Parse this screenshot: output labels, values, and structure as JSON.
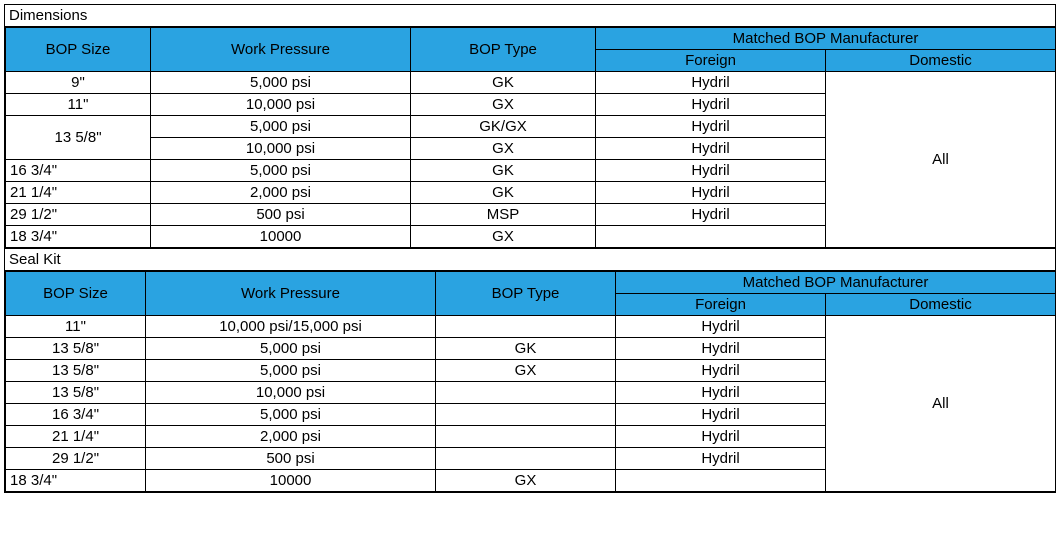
{
  "colors": {
    "header_bg": "#2aa3e1",
    "border": "#000000",
    "background": "#ffffff",
    "text": "#000000"
  },
  "typography": {
    "font_family": "Arial, sans-serif",
    "font_size_pt": 11
  },
  "sections": {
    "dimensions": {
      "title": "Dimensions",
      "headers": {
        "bop_size": "BOP Size",
        "work_pressure": "Work Pressure",
        "bop_type": "BOP Type",
        "matched_mfr": "Matched BOP Manufacturer",
        "foreign": "Foreign",
        "domestic": "Domestic"
      },
      "domestic_all": "All",
      "rows": [
        {
          "size": "9\"",
          "wp": "5,000 psi",
          "type": "GK",
          "foreign": "Hydril"
        },
        {
          "size": "11\"",
          "wp": "10,000 psi",
          "type": "GX",
          "foreign": "Hydril"
        },
        {
          "size": "13 5/8\"",
          "wp": "5,000 psi",
          "type": "GK/GX",
          "foreign": "Hydril"
        },
        {
          "size": "",
          "wp": "10,000 psi",
          "type": "GX",
          "foreign": "Hydril"
        },
        {
          "size": "16 3/4\"",
          "wp": "5,000 psi",
          "type": "GK",
          "foreign": "Hydril"
        },
        {
          "size": "21 1/4\"",
          "wp": "2,000 psi",
          "type": "GK",
          "foreign": "Hydril"
        },
        {
          "size": "29 1/2\"",
          "wp": "500 psi",
          "type": "MSP",
          "foreign": "Hydril"
        },
        {
          "size": "18 3/4\"",
          "wp": "10000",
          "type": "GX",
          "foreign": ""
        }
      ]
    },
    "sealkit": {
      "title": "Seal Kit",
      "headers": {
        "bop_size": "BOP Size",
        "work_pressure": "Work Pressure",
        "bop_type": "BOP Type",
        "matched_mfr": "Matched BOP Manufacturer",
        "foreign": "Foreign",
        "domestic": "Domestic"
      },
      "domestic_all": "All",
      "rows": [
        {
          "size": "11\"",
          "wp": "10,000 psi/15,000 psi",
          "type": "",
          "foreign": "Hydril"
        },
        {
          "size": "13 5/8\"",
          "wp": "5,000 psi",
          "type": "GK",
          "foreign": "Hydril"
        },
        {
          "size": "13 5/8\"",
          "wp": "5,000 psi",
          "type": "GX",
          "foreign": "Hydril"
        },
        {
          "size": "13 5/8\"",
          "wp": "10,000 psi",
          "type": "",
          "foreign": "Hydril"
        },
        {
          "size": "16 3/4\"",
          "wp": "5,000 psi",
          "type": "",
          "foreign": "Hydril"
        },
        {
          "size": "21 1/4\"",
          "wp": "2,000 psi",
          "type": "",
          "foreign": "Hydril"
        },
        {
          "size": "29 1/2\"",
          "wp": "500 psi",
          "type": "",
          "foreign": "Hydril"
        },
        {
          "size": "18 3/4\"",
          "wp": "10000",
          "type": "GX",
          "foreign": ""
        }
      ]
    }
  }
}
